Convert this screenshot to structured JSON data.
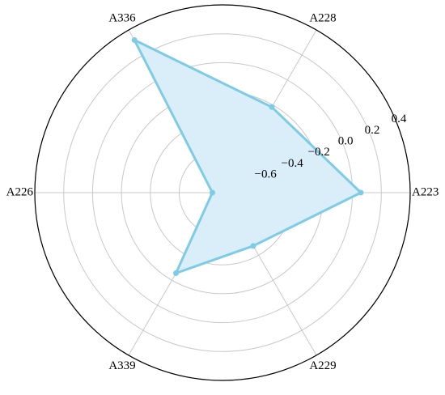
{
  "chart_data": {
    "type": "radar",
    "categories": [
      "A223",
      "A228",
      "A336",
      "A226",
      "A339",
      "A229"
    ],
    "values": [
      0.058,
      -0.216,
      0.32,
      -0.83,
      -0.256,
      -0.474
    ],
    "color": "#7ecbe6",
    "fill": "#daeef9",
    "ylim": [
      -0.9,
      0.4
    ],
    "yticks": [
      {
        "value": -0.6,
        "label": "−0.6"
      },
      {
        "value": -0.4,
        "label": "−0.4"
      },
      {
        "value": -0.2,
        "label": "−0.2"
      },
      {
        "value": 0,
        "label": "0.0"
      },
      0.2,
      0.4
    ],
    "grid": true
  }
}
